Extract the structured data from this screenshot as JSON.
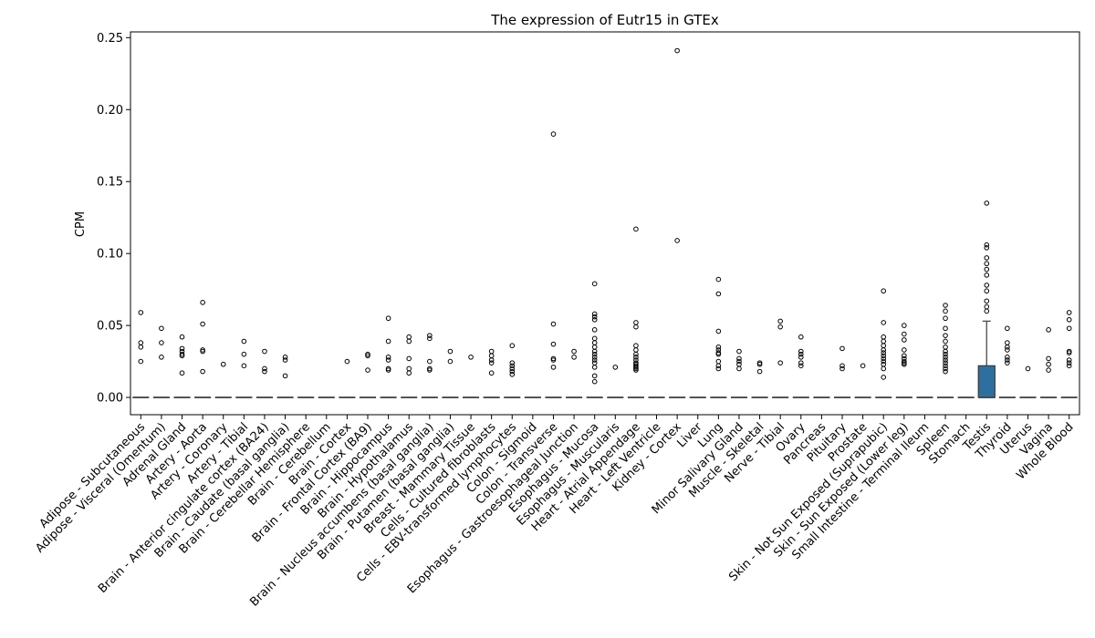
{
  "chart_data": {
    "type": "box",
    "title": "The expression of Eutr15 in GTEx",
    "xlabel": "",
    "ylabel": "CPM",
    "ylim": [
      -0.012,
      0.254
    ],
    "yticks": [
      0.0,
      0.05,
      0.1,
      0.15,
      0.2,
      0.25
    ],
    "ytick_labels": [
      "0.00",
      "0.05",
      "0.10",
      "0.15",
      "0.20",
      "0.25"
    ],
    "grid": false,
    "box_color": "#2f6f9f",
    "median_color": "#4a4a4a",
    "categories": [
      "Adipose - Subcutaneous",
      "Adipose - Visceral (Omentum)",
      "Adrenal Gland",
      "Artery - Aorta",
      "Artery - Coronary",
      "Artery - Tibial",
      "Brain - Anterior cingulate cortex (BA24)",
      "Brain - Caudate (basal ganglia)",
      "Brain - Cerebellar Hemisphere",
      "Brain - Cerebellum",
      "Brain - Cortex",
      "Brain - Frontal Cortex (BA9)",
      "Brain - Hippocampus",
      "Brain - Hypothalamus",
      "Brain - Nucleus accumbens (basal ganglia)",
      "Brain - Putamen (basal ganglia)",
      "Breast - Mammary Tissue",
      "Cells - Cultured fibroblasts",
      "Cells - EBV-transformed lymphocytes",
      "Colon - Sigmoid",
      "Colon - Transverse",
      "Esophagus - Gastroesophageal Junction",
      "Esophagus - Mucosa",
      "Esophagus - Muscularis",
      "Heart - Atrial Appendage",
      "Heart - Left Ventricle",
      "Kidney - Cortex",
      "Liver",
      "Lung",
      "Minor Salivary Gland",
      "Muscle - Skeletal",
      "Nerve - Tibial",
      "Ovary",
      "Pancreas",
      "Pituitary",
      "Prostate",
      "Skin - Not Sun Exposed (Suprapubic)",
      "Skin - Sun Exposed (Lower leg)",
      "Small Intestine - Terminal Ileum",
      "Spleen",
      "Stomach",
      "Testis",
      "Thyroid",
      "Uterus",
      "Vagina",
      "Whole Blood"
    ],
    "boxes": [
      {
        "q1": 0,
        "median": 0,
        "q3": 0,
        "whisker_low": 0,
        "whisker_high": 0,
        "outliers": [
          0.059,
          0.038,
          0.035,
          0.025
        ]
      },
      {
        "q1": 0,
        "median": 0,
        "q3": 0,
        "whisker_low": 0,
        "whisker_high": 0,
        "outliers": [
          0.048,
          0.038,
          0.028
        ]
      },
      {
        "q1": 0,
        "median": 0,
        "q3": 0,
        "whisker_low": 0,
        "whisker_high": 0,
        "outliers": [
          0.042,
          0.034,
          0.032,
          0.03,
          0.029,
          0.017
        ]
      },
      {
        "q1": 0,
        "median": 0,
        "q3": 0,
        "whisker_low": 0,
        "whisker_high": 0,
        "outliers": [
          0.066,
          0.051,
          0.033,
          0.032,
          0.018
        ]
      },
      {
        "q1": 0,
        "median": 0,
        "q3": 0,
        "whisker_low": 0,
        "whisker_high": 0,
        "outliers": [
          0.023
        ]
      },
      {
        "q1": 0,
        "median": 0,
        "q3": 0,
        "whisker_low": 0,
        "whisker_high": 0,
        "outliers": [
          0.039,
          0.03,
          0.022
        ]
      },
      {
        "q1": 0,
        "median": 0,
        "q3": 0,
        "whisker_low": 0,
        "whisker_high": 0,
        "outliers": [
          0.032,
          0.02,
          0.018
        ]
      },
      {
        "q1": 0,
        "median": 0,
        "q3": 0,
        "whisker_low": 0,
        "whisker_high": 0,
        "outliers": [
          0.028,
          0.026,
          0.015
        ]
      },
      {
        "q1": 0,
        "median": 0,
        "q3": 0,
        "whisker_low": 0,
        "whisker_high": 0,
        "outliers": []
      },
      {
        "q1": 0,
        "median": 0,
        "q3": 0,
        "whisker_low": 0,
        "whisker_high": 0,
        "outliers": []
      },
      {
        "q1": 0,
        "median": 0,
        "q3": 0,
        "whisker_low": 0,
        "whisker_high": 0,
        "outliers": [
          0.025
        ]
      },
      {
        "q1": 0,
        "median": 0,
        "q3": 0,
        "whisker_low": 0,
        "whisker_high": 0,
        "outliers": [
          0.03,
          0.029,
          0.019
        ]
      },
      {
        "q1": 0,
        "median": 0,
        "q3": 0,
        "whisker_low": 0,
        "whisker_high": 0,
        "outliers": [
          0.055,
          0.039,
          0.028,
          0.026,
          0.02,
          0.019
        ]
      },
      {
        "q1": 0,
        "median": 0,
        "q3": 0,
        "whisker_low": 0,
        "whisker_high": 0,
        "outliers": [
          0.042,
          0.039,
          0.027,
          0.02,
          0.017
        ]
      },
      {
        "q1": 0,
        "median": 0,
        "q3": 0,
        "whisker_low": 0,
        "whisker_high": 0,
        "outliers": [
          0.043,
          0.041,
          0.025,
          0.02,
          0.019
        ]
      },
      {
        "q1": 0,
        "median": 0,
        "q3": 0,
        "whisker_low": 0,
        "whisker_high": 0,
        "outliers": [
          0.032,
          0.025
        ]
      },
      {
        "q1": 0,
        "median": 0,
        "q3": 0,
        "whisker_low": 0,
        "whisker_high": 0,
        "outliers": [
          0.028
        ]
      },
      {
        "q1": 0,
        "median": 0,
        "q3": 0,
        "whisker_low": 0,
        "whisker_high": 0,
        "outliers": [
          0.032,
          0.029,
          0.026,
          0.024,
          0.017
        ]
      },
      {
        "q1": 0,
        "median": 0,
        "q3": 0,
        "whisker_low": 0,
        "whisker_high": 0,
        "outliers": [
          0.036,
          0.024,
          0.022,
          0.02,
          0.018,
          0.016
        ]
      },
      {
        "q1": 0,
        "median": 0,
        "q3": 0,
        "whisker_low": 0,
        "whisker_high": 0,
        "outliers": []
      },
      {
        "q1": 0,
        "median": 0,
        "q3": 0,
        "whisker_low": 0,
        "whisker_high": 0,
        "outliers": [
          0.183,
          0.051,
          0.037,
          0.027,
          0.026,
          0.021
        ]
      },
      {
        "q1": 0,
        "median": 0,
        "q3": 0,
        "whisker_low": 0,
        "whisker_high": 0,
        "outliers": [
          0.032,
          0.028
        ]
      },
      {
        "q1": 0,
        "median": 0,
        "q3": 0,
        "whisker_low": 0,
        "whisker_high": 0,
        "outliers": [
          0.079,
          0.058,
          0.056,
          0.054,
          0.047,
          0.041,
          0.038,
          0.035,
          0.032,
          0.03,
          0.028,
          0.026,
          0.024,
          0.021,
          0.015,
          0.011
        ]
      },
      {
        "q1": 0,
        "median": 0,
        "q3": 0,
        "whisker_low": 0,
        "whisker_high": 0,
        "outliers": [
          0.021
        ]
      },
      {
        "q1": 0,
        "median": 0,
        "q3": 0,
        "whisker_low": 0,
        "whisker_high": 0,
        "outliers": [
          0.117,
          0.052,
          0.049,
          0.036,
          0.033,
          0.03,
          0.028,
          0.026,
          0.024,
          0.023,
          0.022,
          0.021,
          0.02,
          0.019
        ]
      },
      {
        "q1": 0,
        "median": 0,
        "q3": 0,
        "whisker_low": 0,
        "whisker_high": 0,
        "outliers": []
      },
      {
        "q1": 0,
        "median": 0,
        "q3": 0,
        "whisker_low": 0,
        "whisker_high": 0,
        "outliers": [
          0.241,
          0.109
        ]
      },
      {
        "q1": 0,
        "median": 0,
        "q3": 0,
        "whisker_low": 0,
        "whisker_high": 0,
        "outliers": []
      },
      {
        "q1": 0,
        "median": 0,
        "q3": 0,
        "whisker_low": 0,
        "whisker_high": 0,
        "outliers": [
          0.082,
          0.072,
          0.046,
          0.035,
          0.033,
          0.031,
          0.03,
          0.025,
          0.022,
          0.02
        ]
      },
      {
        "q1": 0,
        "median": 0,
        "q3": 0,
        "whisker_low": 0,
        "whisker_high": 0,
        "outliers": [
          0.032,
          0.027,
          0.025,
          0.023,
          0.02
        ]
      },
      {
        "q1": 0,
        "median": 0,
        "q3": 0,
        "whisker_low": 0,
        "whisker_high": 0,
        "outliers": [
          0.024,
          0.023,
          0.018
        ]
      },
      {
        "q1": 0,
        "median": 0,
        "q3": 0,
        "whisker_low": 0,
        "whisker_high": 0,
        "outliers": [
          0.053,
          0.049,
          0.024
        ]
      },
      {
        "q1": 0,
        "median": 0,
        "q3": 0,
        "whisker_low": 0,
        "whisker_high": 0,
        "outliers": [
          0.042,
          0.032,
          0.03,
          0.028,
          0.024,
          0.022
        ]
      },
      {
        "q1": 0,
        "median": 0,
        "q3": 0,
        "whisker_low": 0,
        "whisker_high": 0,
        "outliers": []
      },
      {
        "q1": 0,
        "median": 0,
        "q3": 0,
        "whisker_low": 0,
        "whisker_high": 0,
        "outliers": [
          0.034,
          0.022,
          0.02
        ]
      },
      {
        "q1": 0,
        "median": 0,
        "q3": 0,
        "whisker_low": 0,
        "whisker_high": 0,
        "outliers": [
          0.022
        ]
      },
      {
        "q1": 0,
        "median": 0,
        "q3": 0,
        "whisker_low": 0,
        "whisker_high": 0,
        "outliers": [
          0.074,
          0.052,
          0.042,
          0.039,
          0.036,
          0.033,
          0.031,
          0.029,
          0.027,
          0.025,
          0.023,
          0.02,
          0.014
        ]
      },
      {
        "q1": 0,
        "median": 0,
        "q3": 0,
        "whisker_low": 0,
        "whisker_high": 0,
        "outliers": [
          0.05,
          0.044,
          0.04,
          0.033,
          0.029,
          0.027,
          0.025,
          0.024,
          0.023
        ]
      },
      {
        "q1": 0,
        "median": 0,
        "q3": 0,
        "whisker_low": 0,
        "whisker_high": 0,
        "outliers": []
      },
      {
        "q1": 0,
        "median": 0,
        "q3": 0,
        "whisker_low": 0,
        "whisker_high": 0,
        "outliers": [
          0.064,
          0.06,
          0.055,
          0.048,
          0.043,
          0.039,
          0.035,
          0.032,
          0.03,
          0.028,
          0.026,
          0.024,
          0.022,
          0.02,
          0.018
        ]
      },
      {
        "q1": 0,
        "median": 0,
        "q3": 0,
        "whisker_low": 0,
        "whisker_high": 0,
        "outliers": []
      },
      {
        "q1": 0,
        "median": 0,
        "q3": 0.022,
        "whisker_low": 0,
        "whisker_high": 0.053,
        "outliers": [
          0.135,
          0.106,
          0.104,
          0.097,
          0.093,
          0.089,
          0.085,
          0.078,
          0.074,
          0.067,
          0.063,
          0.06
        ]
      },
      {
        "q1": 0,
        "median": 0,
        "q3": 0,
        "whisker_low": 0,
        "whisker_high": 0,
        "outliers": [
          0.048,
          0.038,
          0.035,
          0.033,
          0.028,
          0.026,
          0.024
        ]
      },
      {
        "q1": 0,
        "median": 0,
        "q3": 0,
        "whisker_low": 0,
        "whisker_high": 0,
        "outliers": [
          0.02
        ]
      },
      {
        "q1": 0,
        "median": 0,
        "q3": 0,
        "whisker_low": 0,
        "whisker_high": 0,
        "outliers": [
          0.047,
          0.027,
          0.023,
          0.019
        ]
      },
      {
        "q1": 0,
        "median": 0,
        "q3": 0,
        "whisker_low": 0,
        "whisker_high": 0,
        "outliers": [
          0.059,
          0.054,
          0.048,
          0.032,
          0.031,
          0.026,
          0.024,
          0.022
        ]
      }
    ]
  }
}
